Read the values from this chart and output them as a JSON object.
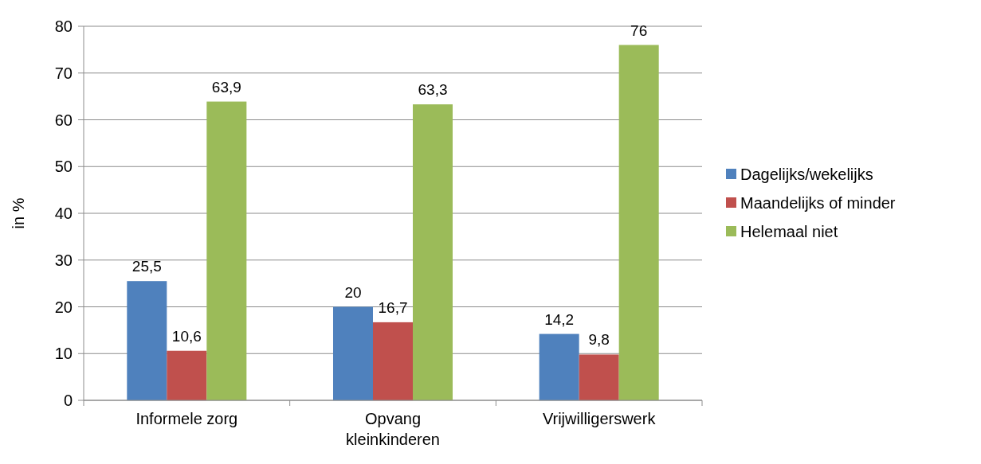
{
  "chart_data": {
    "type": "bar",
    "ylabel": "in %",
    "categories": [
      "Informele zorg",
      "Opvang kleinkinderen",
      "Vrijwilligerswerk"
    ],
    "series": [
      {
        "name": "Dagelijks/wekelijks",
        "color": "#4f81bd",
        "values": [
          25.5,
          20,
          14.2
        ],
        "value_labels": [
          "25,5",
          "20",
          "14,2"
        ]
      },
      {
        "name": "Maandelijks of minder",
        "color": "#c0504d",
        "values": [
          10.6,
          16.7,
          9.8
        ],
        "value_labels": [
          "10,6",
          "16,7",
          "9,8"
        ]
      },
      {
        "name": "Helemaal niet",
        "color": "#9bbb59",
        "values": [
          63.9,
          63.3,
          76
        ],
        "value_labels": [
          "63,9",
          "63,3",
          "76"
        ]
      }
    ],
    "ylim": [
      0,
      80
    ],
    "yticks": [
      0,
      10,
      20,
      30,
      40,
      50,
      60,
      70,
      80
    ],
    "grid": "y",
    "legend": "right"
  }
}
